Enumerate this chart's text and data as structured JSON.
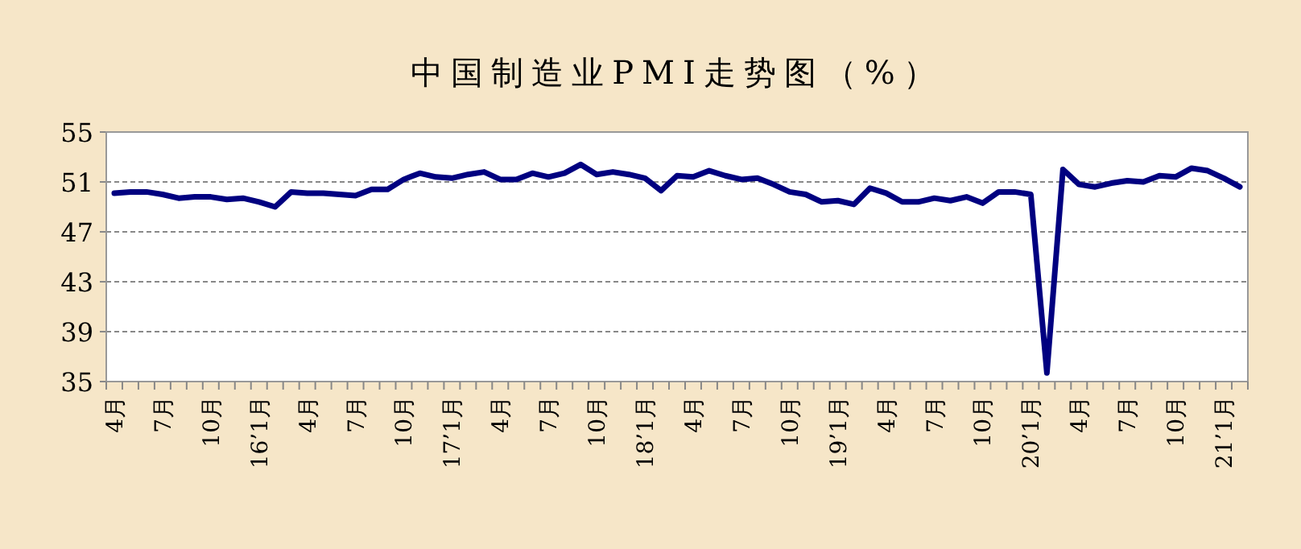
{
  "chart_data": {
    "type": "line",
    "title": "中国制造业PMI走势图（%）",
    "categories": [
      "4月",
      null,
      null,
      "7月",
      null,
      null,
      "10月",
      null,
      null,
      "16’1月",
      null,
      null,
      "4月",
      null,
      null,
      "7月",
      null,
      null,
      "10月",
      null,
      null,
      "17’1月",
      null,
      null,
      "4月",
      null,
      null,
      "7月",
      null,
      null,
      "10月",
      null,
      null,
      "18’1月",
      null,
      null,
      "4月",
      null,
      null,
      "7月",
      null,
      null,
      "10月",
      null,
      null,
      "19’1月",
      null,
      null,
      "4月",
      null,
      null,
      "7月",
      null,
      null,
      "10月",
      null,
      null,
      "20’1月",
      null,
      null,
      "4月",
      null,
      null,
      "7月",
      null,
      null,
      "10月",
      null,
      null,
      "21’1月",
      null
    ],
    "values": [
      50.1,
      50.2,
      50.2,
      50.0,
      49.7,
      49.8,
      49.8,
      49.6,
      49.7,
      49.4,
      49.0,
      50.2,
      50.1,
      50.1,
      50.0,
      49.9,
      50.4,
      50.4,
      51.2,
      51.7,
      51.4,
      51.3,
      51.6,
      51.8,
      51.2,
      51.2,
      51.7,
      51.4,
      51.7,
      52.4,
      51.6,
      51.8,
      51.6,
      51.3,
      50.3,
      51.5,
      51.4,
      51.9,
      51.5,
      51.2,
      51.3,
      50.8,
      50.2,
      50.0,
      49.4,
      49.5,
      49.2,
      50.5,
      50.1,
      49.4,
      49.4,
      49.7,
      49.5,
      49.8,
      49.3,
      50.2,
      50.2,
      50.0,
      35.7,
      52.0,
      50.8,
      50.6,
      50.9,
      51.1,
      51.0,
      51.5,
      51.4,
      52.1,
      51.9,
      51.3,
      50.6
    ],
    "color": "#000080",
    "ylim": [
      35,
      55
    ],
    "yticks": [
      35,
      39,
      43,
      47,
      51,
      55
    ],
    "grid": "y"
  }
}
